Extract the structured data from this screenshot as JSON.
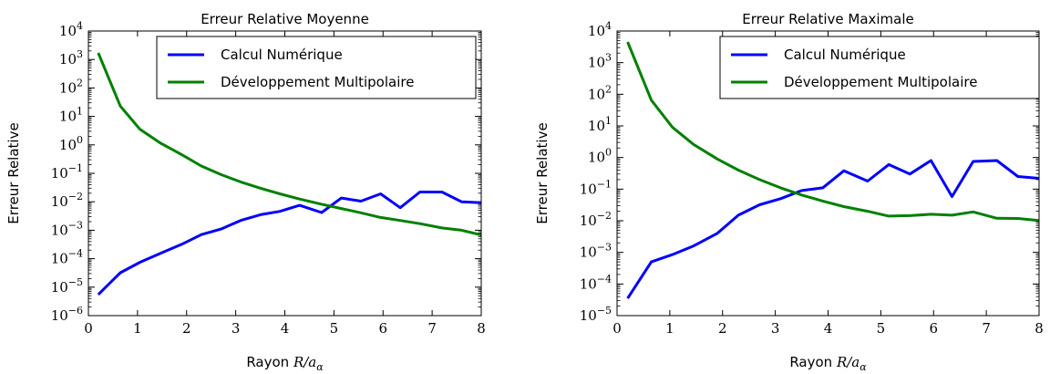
{
  "chart_data": [
    {
      "type": "line",
      "title": "Erreur Relative Moyenne",
      "xlabel_text": "Rayon",
      "xlabel_math": "R/a",
      "xlabel_sub": "α",
      "ylabel": "Erreur Relative",
      "xlim": [
        0,
        8
      ],
      "ylim_log10": [
        -6,
        4
      ],
      "y_scale": "log",
      "x_ticks": [
        0,
        1,
        2,
        3,
        4,
        5,
        6,
        7,
        8
      ],
      "y_tick_exponents": [
        -6,
        -5,
        -4,
        -3,
        -2,
        -1,
        0,
        1,
        2,
        3,
        4
      ],
      "legend_position": "upper-right",
      "series": [
        {
          "name": "Calcul Numérique",
          "color": "#0000ff",
          "x": [
            0.2,
            0.65,
            1.05,
            1.45,
            1.9,
            2.3,
            2.7,
            3.1,
            3.5,
            3.9,
            4.3,
            4.75,
            5.15,
            5.55,
            5.95,
            6.35,
            6.75,
            7.2,
            7.6,
            8.0
          ],
          "y": [
            5.5e-06,
            3.2e-05,
            7.5e-05,
            0.00015,
            0.00032,
            0.0007,
            0.0011,
            0.0022,
            0.0035,
            0.0046,
            0.0075,
            0.0042,
            0.0135,
            0.0105,
            0.019,
            0.0062,
            0.022,
            0.022,
            0.01,
            0.0092
          ]
        },
        {
          "name": "Développement Multipolaire",
          "color": "#008000",
          "x": [
            0.2,
            0.65,
            1.05,
            1.45,
            1.9,
            2.3,
            2.7,
            3.1,
            3.5,
            3.9,
            4.3,
            4.75,
            5.15,
            5.55,
            5.95,
            6.35,
            6.75,
            7.2,
            7.6,
            8.0
          ],
          "y": [
            1700,
            23,
            3.5,
            1.2,
            0.45,
            0.18,
            0.09,
            0.05,
            0.03,
            0.019,
            0.0125,
            0.0082,
            0.0058,
            0.0041,
            0.0028,
            0.0022,
            0.0017,
            0.0012,
            0.001,
            0.00068
          ]
        }
      ]
    },
    {
      "type": "line",
      "title": "Erreur Relative Maximale",
      "xlabel_text": "Rayon",
      "xlabel_math": "R/a",
      "xlabel_sub": "α",
      "ylabel": "Erreur Relative",
      "xlim": [
        0,
        8
      ],
      "ylim_log10": [
        -5,
        4
      ],
      "y_scale": "log",
      "x_ticks": [
        0,
        1,
        2,
        3,
        4,
        5,
        6,
        7,
        8
      ],
      "y_tick_exponents": [
        -5,
        -4,
        -3,
        -2,
        -1,
        0,
        1,
        2,
        3,
        4
      ],
      "legend_position": "upper-right",
      "series": [
        {
          "name": "Calcul Numérique",
          "color": "#0000ff",
          "x": [
            0.2,
            0.65,
            1.05,
            1.45,
            1.9,
            2.3,
            2.7,
            3.1,
            3.5,
            3.9,
            4.3,
            4.75,
            5.15,
            5.55,
            5.95,
            6.35,
            6.75,
            7.2,
            7.6,
            8.0
          ],
          "y": [
            3.5e-05,
            0.0005,
            0.00085,
            0.0016,
            0.004,
            0.015,
            0.032,
            0.05,
            0.09,
            0.11,
            0.38,
            0.18,
            0.6,
            0.3,
            0.8,
            0.058,
            0.75,
            0.8,
            0.25,
            0.22
          ]
        },
        {
          "name": "Développement Multipolaire",
          "color": "#008000",
          "x": [
            0.2,
            0.65,
            1.05,
            1.45,
            1.9,
            2.3,
            2.7,
            3.1,
            3.5,
            3.9,
            4.3,
            4.75,
            5.15,
            5.55,
            5.95,
            6.35,
            6.75,
            7.2,
            7.6,
            8.0
          ],
          "y": [
            4500,
            65,
            9,
            2.6,
            0.9,
            0.4,
            0.2,
            0.11,
            0.065,
            0.042,
            0.028,
            0.02,
            0.014,
            0.0145,
            0.016,
            0.015,
            0.019,
            0.012,
            0.0118,
            0.0102
          ]
        }
      ]
    }
  ]
}
